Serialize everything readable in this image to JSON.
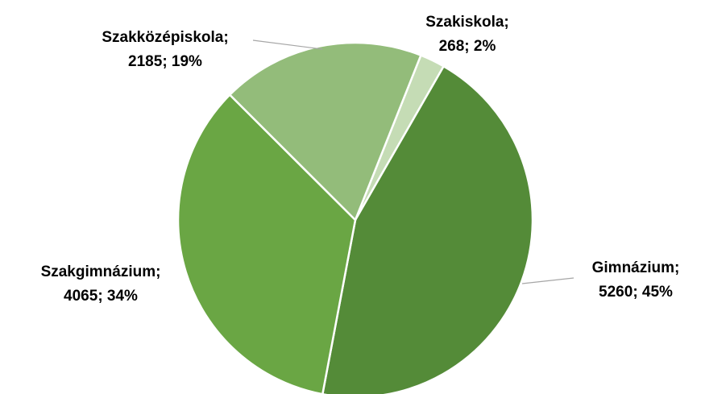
{
  "chart_data": {
    "type": "pie",
    "categories": [
      "Szakiskola;",
      "Gimnázium;",
      "Szakgimnázium;",
      "Szakközépiskola;"
    ],
    "values": [
      268,
      5260,
      4065,
      2185
    ],
    "value_labels": [
      "268; 2%",
      "5260; 45%",
      "4065; 34%",
      "2185; 19%"
    ],
    "colors": [
      "#c5dcb5",
      "#548b38",
      "#6aa644",
      "#93bc7a"
    ]
  }
}
